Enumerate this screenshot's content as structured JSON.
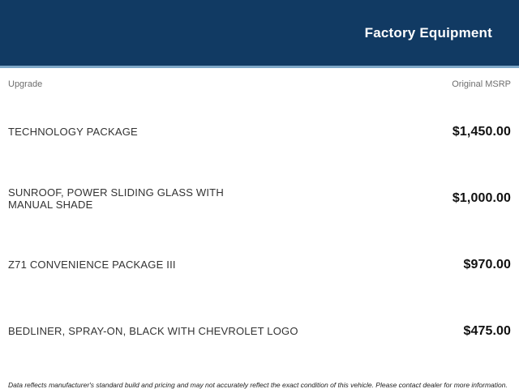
{
  "header": {
    "title": "Factory Equipment"
  },
  "table": {
    "columns": {
      "upgrade": "Upgrade",
      "msrp": "Original MSRP"
    },
    "rows": [
      {
        "label": "TECHNOLOGY PACKAGE",
        "price": "$1,450.00"
      },
      {
        "label": "SUNROOF, POWER SLIDING GLASS WITH MANUAL SHADE",
        "price": "$1,000.00"
      },
      {
        "label": "Z71 CONVENIENCE PACKAGE III",
        "price": "$970.00"
      },
      {
        "label": "BEDLINER, SPRAY-ON, BLACK WITH CHEVROLET LOGO",
        "price": "$475.00"
      }
    ]
  },
  "footer": {
    "disclaimer": "Data reflects manufacturer's standard build and pricing and may not accurately reflect the exact condition of this vehicle. Please contact dealer for more information."
  },
  "colors": {
    "header_bg": "#113a63",
    "header_border": "#7ea7c7",
    "title_text": "#ffffff",
    "column_header_text": "#6e6e6e",
    "label_text": "#333333",
    "price_text": "#111111",
    "disclaimer_text": "#222222",
    "background": "#ffffff"
  }
}
